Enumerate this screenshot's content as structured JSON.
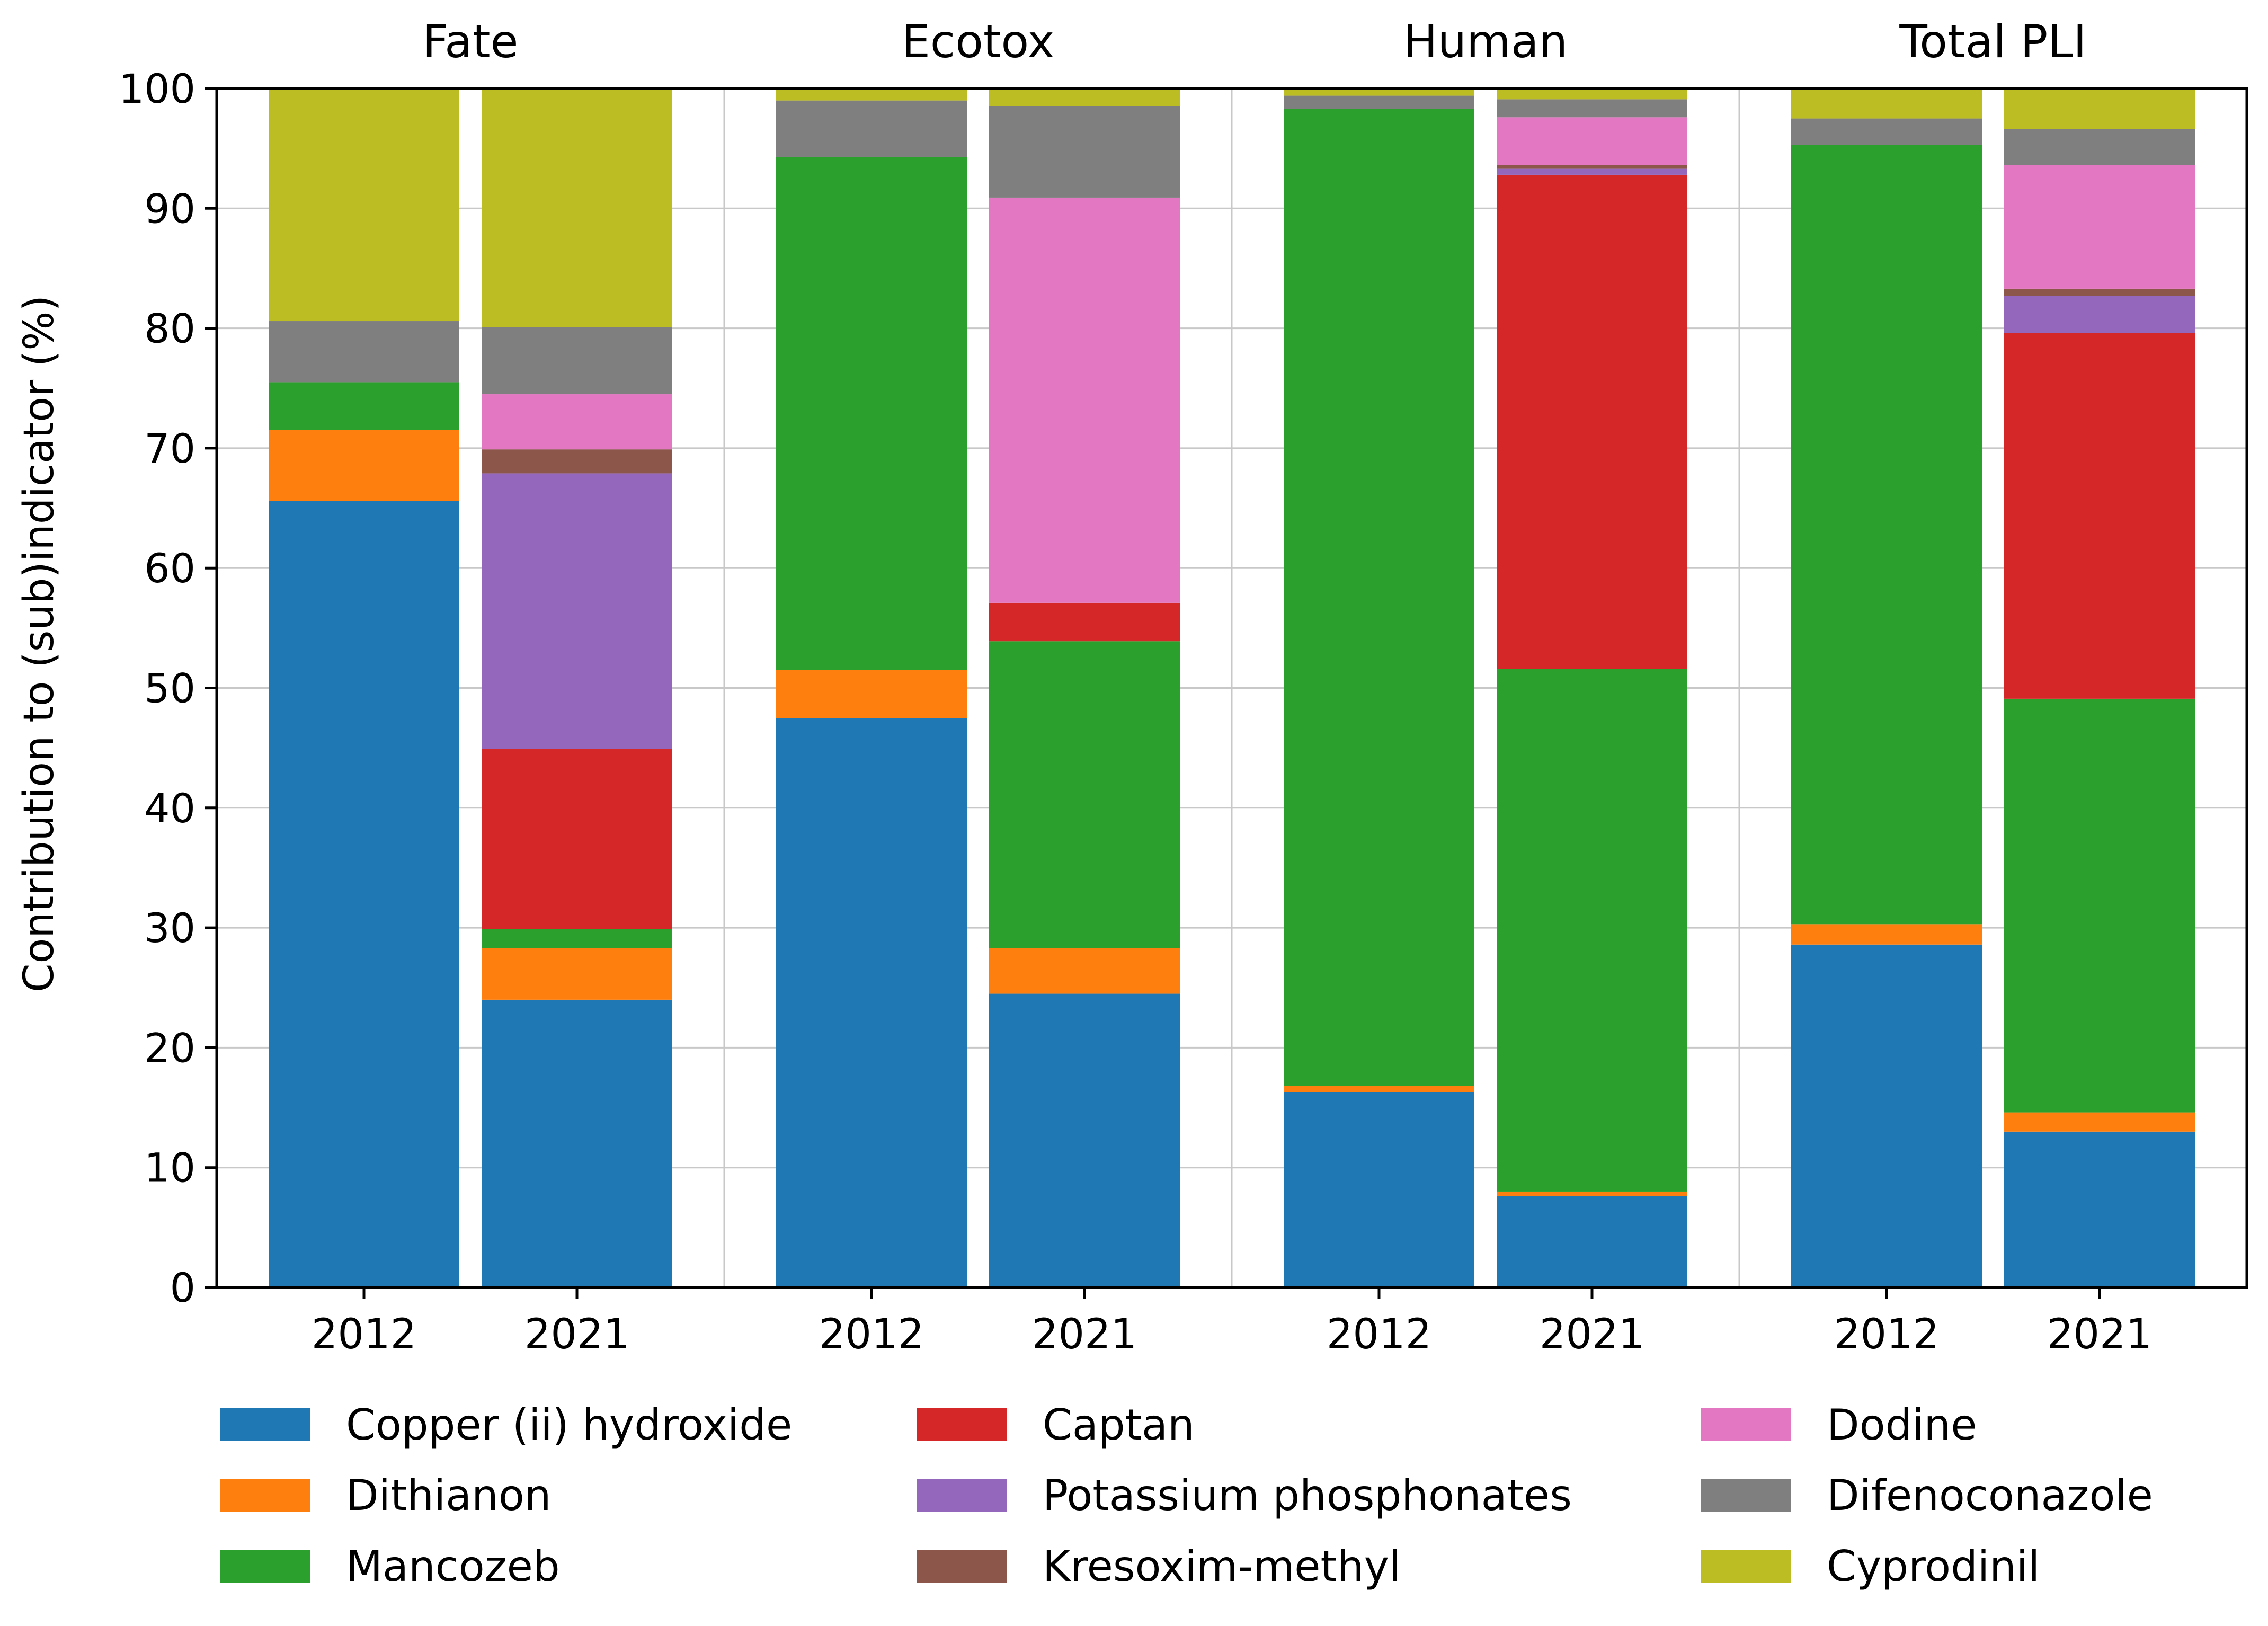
{
  "chart_data": {
    "type": "bar",
    "stacked": true,
    "ylabel": "Contribution to (sub)indicator (%)",
    "ylim": [
      0,
      100
    ],
    "yticks": [
      0,
      10,
      20,
      30,
      40,
      50,
      60,
      70,
      80,
      90,
      100
    ],
    "grid": true,
    "legend_position": "bottom",
    "series_names": [
      "Copper (ii) hydroxide",
      "Dithianon",
      "Mancozeb",
      "Captan",
      "Potassium phosphonates",
      "Kresoxim-methyl",
      "Dodine",
      "Difenoconazole",
      "Cyprodinil"
    ],
    "colors": [
      "#1f77b4",
      "#ff7f0e",
      "#2ca02c",
      "#d62728",
      "#9467bd",
      "#8c564b",
      "#e377c2",
      "#7f7f7f",
      "#bcbd22"
    ],
    "groups": [
      {
        "title": "Fate",
        "categories": [
          "2012",
          "2021"
        ],
        "values": [
          [
            65.6,
            5.9,
            4.0,
            0.0,
            0.0,
            0.0,
            0.0,
            5.1,
            19.4
          ],
          [
            24.0,
            4.3,
            1.6,
            15.0,
            23.0,
            2.0,
            4.6,
            5.6,
            19.9
          ]
        ]
      },
      {
        "title": "Ecotox",
        "categories": [
          "2012",
          "2021"
        ],
        "values": [
          [
            47.5,
            4.0,
            42.8,
            0.0,
            0.0,
            0.0,
            0.0,
            4.7,
            1.0
          ],
          [
            24.5,
            3.8,
            25.6,
            3.2,
            0.0,
            0.0,
            33.8,
            7.6,
            1.5
          ]
        ]
      },
      {
        "title": "Human",
        "categories": [
          "2012",
          "2021"
        ],
        "values": [
          [
            16.3,
            0.5,
            81.5,
            0.0,
            0.0,
            0.0,
            0.0,
            1.1,
            0.6
          ],
          [
            7.6,
            0.4,
            43.6,
            41.2,
            0.5,
            0.3,
            4.0,
            1.5,
            0.9
          ]
        ]
      },
      {
        "title": "Total PLI",
        "categories": [
          "2012",
          "2021"
        ],
        "values": [
          [
            28.6,
            1.7,
            65.0,
            0.0,
            0.0,
            0.0,
            0.0,
            2.2,
            2.5
          ],
          [
            13.0,
            1.6,
            34.5,
            30.5,
            3.1,
            0.6,
            10.3,
            3.0,
            3.4
          ]
        ]
      }
    ]
  }
}
